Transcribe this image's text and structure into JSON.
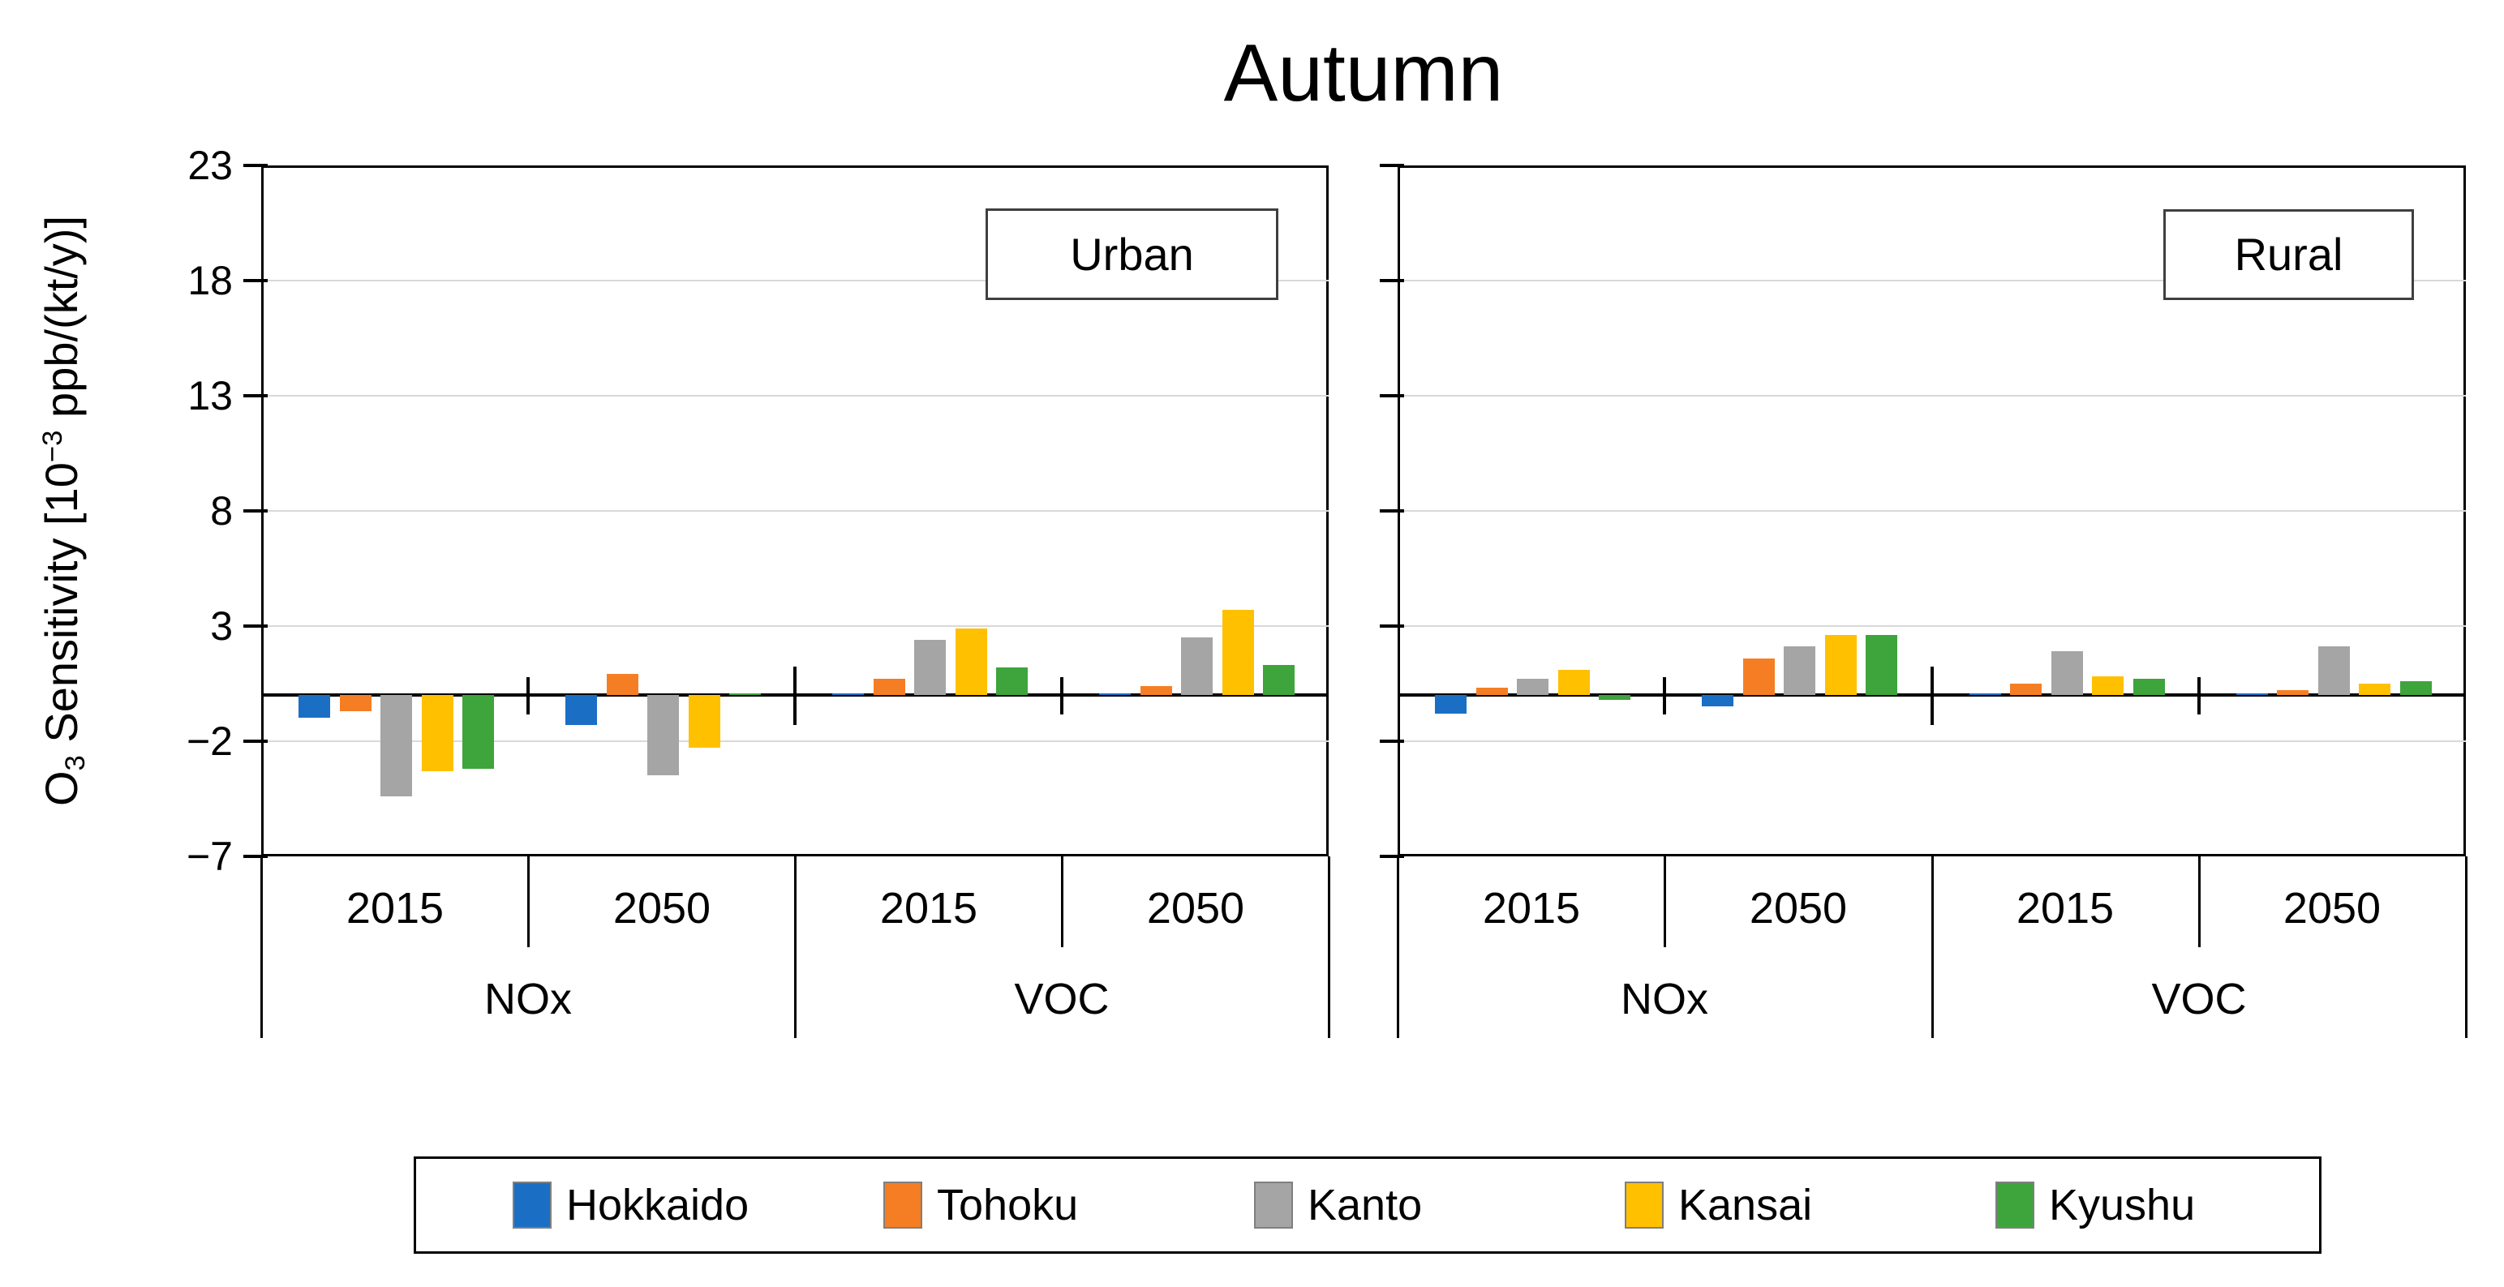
{
  "title": "Autumn",
  "y_axis": {
    "label_prefix": "O",
    "label_sub": "3",
    "label_mid": " Sensitivity [10",
    "label_sup": "−3",
    "label_suffix": " ppb/(kt/y)]",
    "ticks": [
      23,
      18,
      13,
      8,
      3,
      -2,
      -7
    ],
    "ylim": [
      -7,
      23
    ]
  },
  "x_axis": {
    "year_labels": [
      "2015",
      "2050",
      "2015",
      "2050"
    ],
    "group_labels": [
      "NOx",
      "VOC"
    ]
  },
  "legend": {
    "position": "bottom",
    "entries": [
      {
        "label": "Hokkaido",
        "color": "#1a6fc4"
      },
      {
        "label": "Tohoku",
        "color": "#f57e25"
      },
      {
        "label": "Kanto",
        "color": "#a5a5a5"
      },
      {
        "label": "Kansai",
        "color": "#ffc000"
      },
      {
        "label": "Kyushu",
        "color": "#3ea43c"
      }
    ]
  },
  "colors": {
    "gridline": "#d9d9d9",
    "axis": "#000000",
    "inset_border": "#3f3f3f"
  },
  "chart_data": [
    {
      "type": "bar",
      "title": "Urban",
      "categories": [
        "NOx 2015",
        "NOx 2050",
        "VOC 2015",
        "VOC 2050"
      ],
      "ylim": [
        -7,
        23
      ],
      "series": [
        {
          "name": "Hokkaido",
          "values": [
            -1.0,
            -1.3,
            0.05,
            0.05
          ]
        },
        {
          "name": "Tohoku",
          "values": [
            -0.7,
            0.9,
            0.7,
            0.4
          ]
        },
        {
          "name": "Kanto",
          "values": [
            -4.4,
            -3.5,
            2.4,
            2.5
          ]
        },
        {
          "name": "Kansai",
          "values": [
            -3.3,
            -2.3,
            2.9,
            3.7
          ]
        },
        {
          "name": "Kyushu",
          "values": [
            -3.2,
            0.05,
            1.2,
            1.3
          ]
        }
      ]
    },
    {
      "type": "bar",
      "title": "Rural",
      "categories": [
        "NOx 2015",
        "NOx 2050",
        "VOC 2015",
        "VOC 2050"
      ],
      "ylim": [
        -7,
        23
      ],
      "series": [
        {
          "name": "Hokkaido",
          "values": [
            -0.8,
            -0.5,
            0.05,
            0.05
          ]
        },
        {
          "name": "Tohoku",
          "values": [
            0.3,
            1.6,
            0.5,
            0.2
          ]
        },
        {
          "name": "Kanto",
          "values": [
            0.7,
            2.1,
            1.9,
            2.1
          ]
        },
        {
          "name": "Kansai",
          "values": [
            1.1,
            2.6,
            0.8,
            0.5
          ]
        },
        {
          "name": "Kyushu",
          "values": [
            -0.2,
            2.6,
            0.7,
            0.6
          ]
        }
      ]
    }
  ]
}
